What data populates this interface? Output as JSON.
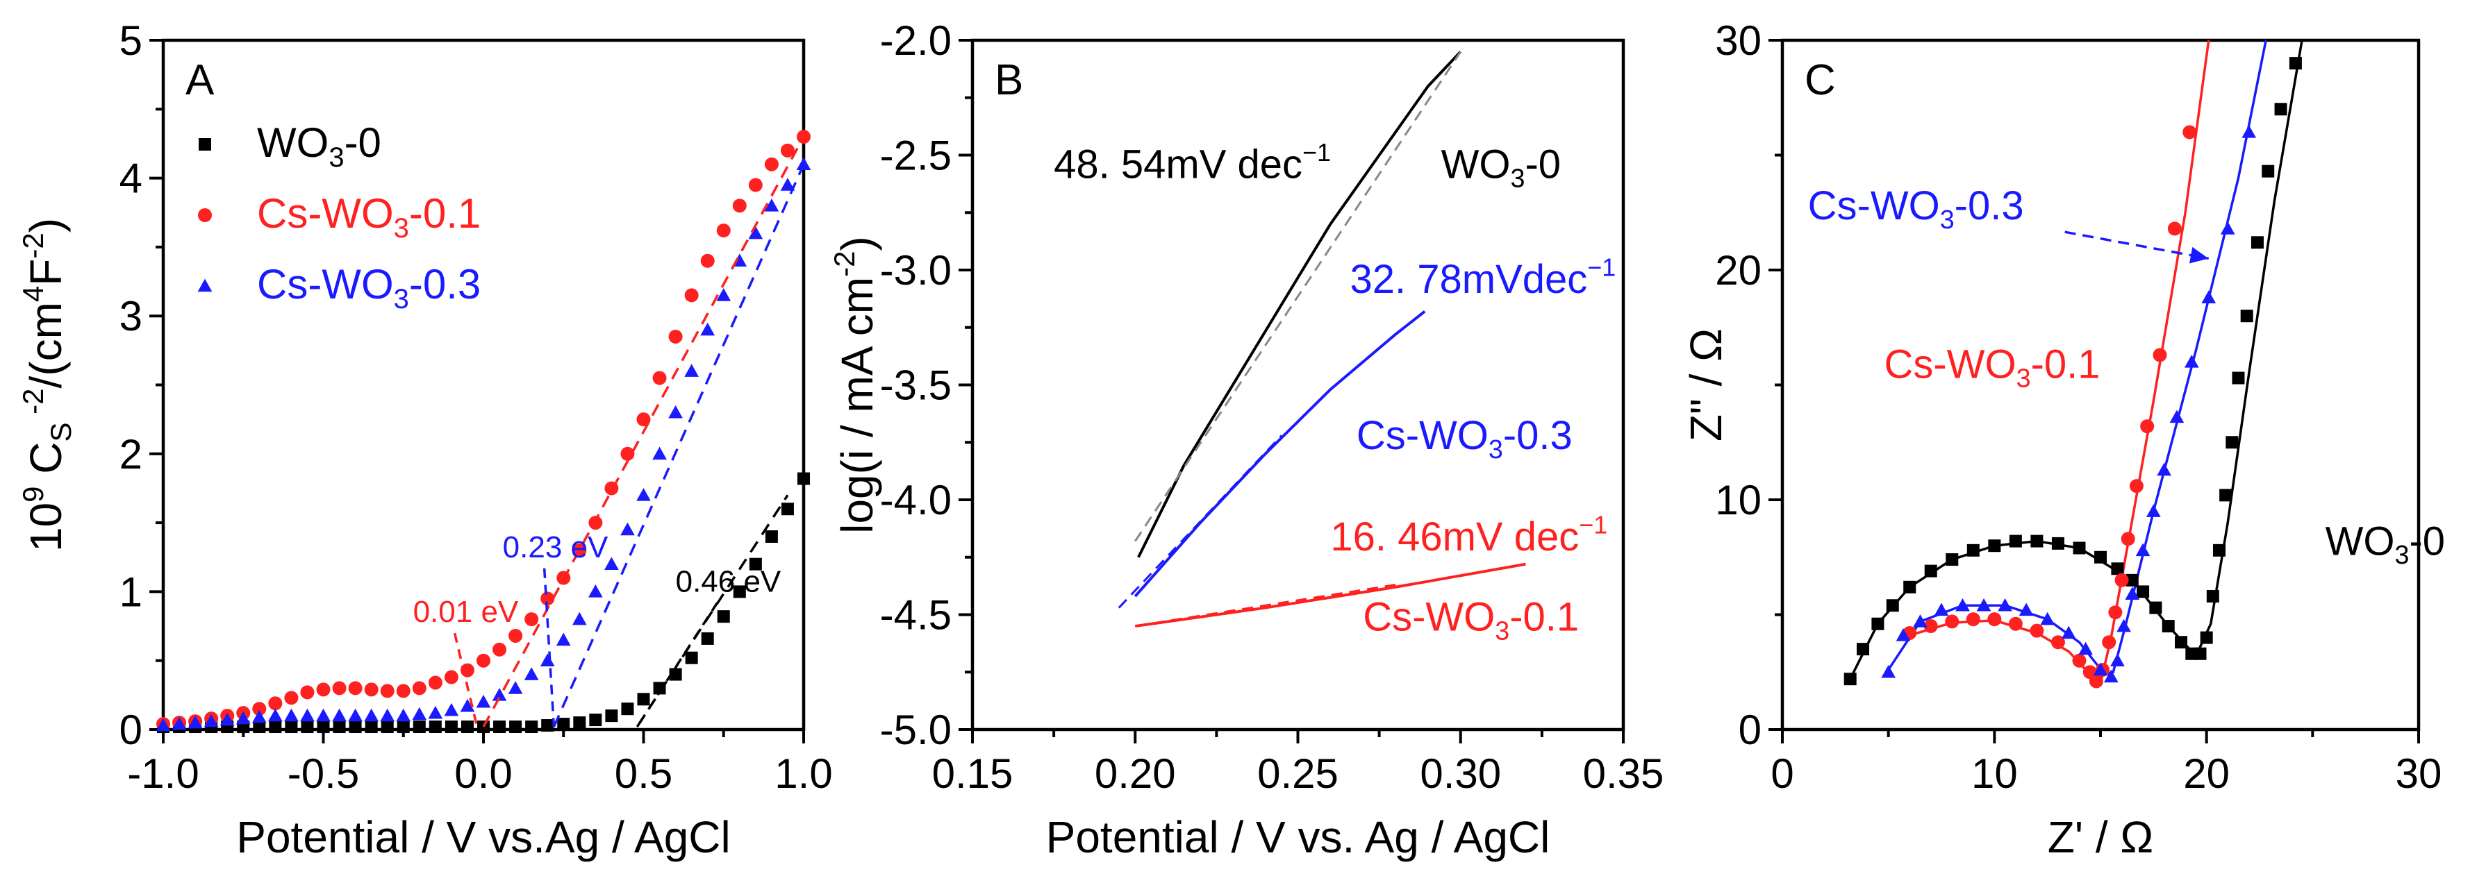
{
  "colors": {
    "black": "#000000",
    "red": "#ff2020",
    "blue": "#1a1aff"
  },
  "chart_data": [
    {
      "type": "scatter",
      "panel": "A",
      "title": "",
      "xlabel": "Potential / V vs.Ag / AgCl",
      "ylabel": "10^9 C_S^-2/(cm^4F^-2)",
      "ylabel_parts": {
        "prefix": "10",
        "exp1": "9",
        "mid": " C",
        "sub": "S",
        "exp2": " -2",
        "rest": "/(cm",
        "exp3": "4",
        "unit": "F",
        "exp4": "-2",
        "close": ")"
      },
      "xlim": [
        -1.0,
        1.0
      ],
      "ylim": [
        0,
        5
      ],
      "xticks": [
        -1.0,
        -0.5,
        0.0,
        0.5,
        1.0
      ],
      "xtick_labels": [
        "-1.0",
        "-0.5",
        "0.0",
        "0.5",
        "1.0"
      ],
      "yticks": [
        0,
        1,
        2,
        3,
        4,
        5
      ],
      "ytick_labels": [
        "0",
        "1",
        "2",
        "3",
        "4",
        "5"
      ],
      "legend_position": "top-left",
      "series": [
        {
          "name": "WO3-0",
          "label_main": "WO",
          "label_sub": "3",
          "label_rest": "-0",
          "color": "#000000",
          "marker": "square",
          "x": [
            -1.0,
            -0.95,
            -0.9,
            -0.85,
            -0.8,
            -0.75,
            -0.7,
            -0.65,
            -0.6,
            -0.55,
            -0.5,
            -0.45,
            -0.4,
            -0.35,
            -0.3,
            -0.25,
            -0.2,
            -0.15,
            -0.1,
            -0.05,
            0.0,
            0.05,
            0.1,
            0.15,
            0.2,
            0.25,
            0.3,
            0.35,
            0.4,
            0.45,
            0.5,
            0.55,
            0.6,
            0.65,
            0.7,
            0.75,
            0.8,
            0.85,
            0.9,
            0.95,
            1.0
          ],
          "y": [
            0.02,
            0.02,
            0.02,
            0.02,
            0.02,
            0.02,
            0.02,
            0.02,
            0.02,
            0.02,
            0.02,
            0.02,
            0.02,
            0.02,
            0.02,
            0.02,
            0.02,
            0.02,
            0.02,
            0.02,
            0.02,
            0.02,
            0.02,
            0.02,
            0.03,
            0.04,
            0.05,
            0.07,
            0.1,
            0.15,
            0.22,
            0.3,
            0.4,
            0.52,
            0.66,
            0.82,
            1.0,
            1.2,
            1.4,
            1.6,
            1.82
          ]
        },
        {
          "name": "Cs-WO3-0.1",
          "label_main": "Cs-WO",
          "label_sub": "3",
          "label_rest": "-0.1",
          "color": "#ff2020",
          "marker": "circle",
          "x": [
            -1.0,
            -0.95,
            -0.9,
            -0.85,
            -0.8,
            -0.75,
            -0.7,
            -0.65,
            -0.6,
            -0.55,
            -0.5,
            -0.45,
            -0.4,
            -0.35,
            -0.3,
            -0.25,
            -0.2,
            -0.15,
            -0.1,
            -0.05,
            0.0,
            0.05,
            0.1,
            0.15,
            0.2,
            0.25,
            0.3,
            0.35,
            0.4,
            0.45,
            0.5,
            0.55,
            0.6,
            0.65,
            0.7,
            0.75,
            0.8,
            0.85,
            0.9,
            0.95,
            1.0
          ],
          "y": [
            0.04,
            0.05,
            0.06,
            0.08,
            0.1,
            0.12,
            0.15,
            0.19,
            0.23,
            0.27,
            0.29,
            0.3,
            0.3,
            0.29,
            0.28,
            0.28,
            0.3,
            0.34,
            0.38,
            0.43,
            0.5,
            0.58,
            0.68,
            0.8,
            0.95,
            1.1,
            1.3,
            1.5,
            1.75,
            2.0,
            2.25,
            2.55,
            2.85,
            3.15,
            3.4,
            3.62,
            3.8,
            3.95,
            4.1,
            4.2,
            4.3
          ]
        },
        {
          "name": "Cs-WO3-0.3",
          "label_main": "Cs-WO",
          "label_sub": "3",
          "label_rest": "-0.3",
          "color": "#1a1aff",
          "marker": "triangle",
          "x": [
            -1.0,
            -0.95,
            -0.9,
            -0.85,
            -0.8,
            -0.75,
            -0.7,
            -0.65,
            -0.6,
            -0.55,
            -0.5,
            -0.45,
            -0.4,
            -0.35,
            -0.3,
            -0.25,
            -0.2,
            -0.15,
            -0.1,
            -0.05,
            0.0,
            0.05,
            0.1,
            0.15,
            0.2,
            0.25,
            0.3,
            0.35,
            0.4,
            0.45,
            0.5,
            0.55,
            0.6,
            0.65,
            0.7,
            0.75,
            0.8,
            0.85,
            0.9,
            0.95,
            1.0
          ],
          "y": [
            0.03,
            0.04,
            0.05,
            0.06,
            0.07,
            0.08,
            0.09,
            0.1,
            0.1,
            0.1,
            0.1,
            0.1,
            0.1,
            0.1,
            0.1,
            0.1,
            0.11,
            0.12,
            0.14,
            0.17,
            0.2,
            0.25,
            0.3,
            0.4,
            0.5,
            0.65,
            0.8,
            1.0,
            1.2,
            1.45,
            1.7,
            2.0,
            2.3,
            2.6,
            2.9,
            3.15,
            3.4,
            3.6,
            3.8,
            3.95,
            4.1
          ]
        }
      ],
      "fits": [
        {
          "series": "Cs-WO3-0.1",
          "color": "#ff2020",
          "x": [
            0.0,
            1.0
          ],
          "y": [
            0.02,
            4.3
          ]
        },
        {
          "series": "Cs-WO3-0.3",
          "color": "#1a1aff",
          "x": [
            0.22,
            1.0
          ],
          "y": [
            0.02,
            4.1
          ]
        },
        {
          "series": "WO3-0",
          "color": "#000000",
          "x": [
            0.48,
            0.95
          ],
          "y": [
            0.02,
            1.7
          ]
        }
      ],
      "annotations": [
        {
          "text": "0.01 eV",
          "color": "#ff2020",
          "x": -0.22,
          "y": 0.78,
          "arrow_to": [
            -0.02,
            0.02
          ]
        },
        {
          "text": "0.23 eV",
          "color": "#1a1aff",
          "x": 0.06,
          "y": 1.25,
          "arrow_to": [
            0.22,
            0.02
          ]
        },
        {
          "text": "0.46 eV",
          "color": "#000000",
          "x": 0.6,
          "y": 1.0,
          "arrow_to": [
            0.48,
            0.02
          ]
        }
      ]
    },
    {
      "type": "line",
      "panel": "B",
      "title": "",
      "xlabel": "Potential / V vs. Ag / AgCl",
      "ylabel": "log(i / mA cm^-2)",
      "ylabel_parts": {
        "prefix": "log(i / mA cm",
        "exp": "-2",
        "close": ")"
      },
      "xlim": [
        0.15,
        0.35
      ],
      "ylim": [
        -5.0,
        -2.0
      ],
      "xticks": [
        0.15,
        0.2,
        0.25,
        0.3,
        0.35
      ],
      "xtick_labels": [
        "0.15",
        "0.20",
        "0.25",
        "0.30",
        "0.35"
      ],
      "yticks": [
        -5.0,
        -4.5,
        -4.0,
        -3.5,
        -3.0,
        -2.5,
        -2.0
      ],
      "ytick_labels": [
        "-5.0",
        "-4.5",
        "-4.0",
        "-3.5",
        "-3.0",
        "-2.5",
        "-2.0"
      ],
      "series": [
        {
          "name": "WO3-0",
          "color": "#000000",
          "x": [
            0.201,
            0.215,
            0.23,
            0.245,
            0.26,
            0.275,
            0.29,
            0.3
          ],
          "y": [
            -4.25,
            -3.85,
            -3.5,
            -3.15,
            -2.8,
            -2.5,
            -2.2,
            -2.05
          ]
        },
        {
          "name": "Cs-WO3-0.3",
          "color": "#1a1aff",
          "x": [
            0.2,
            0.22,
            0.24,
            0.26,
            0.28,
            0.289
          ],
          "y": [
            -4.42,
            -4.1,
            -3.8,
            -3.52,
            -3.28,
            -3.18
          ]
        },
        {
          "name": "Cs-WO3-0.1",
          "color": "#ff2020",
          "x": [
            0.2,
            0.24,
            0.28,
            0.32
          ],
          "y": [
            -4.55,
            -4.47,
            -4.38,
            -4.28
          ]
        }
      ],
      "fits": [
        {
          "series": "WO3-0",
          "color": "#888888",
          "x": [
            0.2,
            0.3
          ],
          "y": [
            -4.18,
            -2.05
          ]
        },
        {
          "series": "Cs-WO3-0.3",
          "color": "#1a1aff",
          "x": [
            0.195,
            0.245
          ],
          "y": [
            -4.47,
            -3.72
          ]
        },
        {
          "series": "Cs-WO3-0.1",
          "color": "#ff2020",
          "x": [
            0.2,
            0.28
          ],
          "y": [
            -4.55,
            -4.37
          ]
        }
      ],
      "annotations": [
        {
          "name": "tafel-wo3-0",
          "color": "#000000",
          "text_main": "48. 54mV dec",
          "text_sup": "−1",
          "x": 0.175,
          "y": -2.6
        },
        {
          "name": "series-label-wo3-0",
          "color": "#000000",
          "text_main": "WO",
          "text_sub": "3",
          "text_rest": "-0",
          "x": 0.294,
          "y": -2.6
        },
        {
          "name": "tafel-cs-wo3-0.3",
          "color": "#1a1aff",
          "text_main": "32. 78mVdec",
          "text_sup": "−1",
          "x": 0.266,
          "y": -3.1
        },
        {
          "name": "series-label-cs-wo3-0.3",
          "color": "#1a1aff",
          "text_main": "Cs-WO",
          "text_sub": "3",
          "text_rest": "-0.3",
          "x": 0.268,
          "y": -3.78
        },
        {
          "name": "tafel-cs-wo3-0.1",
          "color": "#ff2020",
          "text_main": "16. 46mV dec",
          "text_sup": "−1",
          "x": 0.26,
          "y": -4.22
        },
        {
          "name": "series-label-cs-wo3-0.1",
          "color": "#ff2020",
          "text_main": "Cs-WO",
          "text_sub": "3",
          "text_rest": "-0.1",
          "x": 0.27,
          "y": -4.57
        }
      ]
    },
    {
      "type": "scatter",
      "panel": "C",
      "title": "",
      "xlabel": "Z' / Ω",
      "ylabel": "Z\" / Ω",
      "xlim": [
        0,
        30
      ],
      "ylim": [
        0,
        30
      ],
      "xticks": [
        0,
        10,
        20,
        30
      ],
      "xtick_labels": [
        "0",
        "10",
        "20",
        "30"
      ],
      "yticks": [
        0,
        10,
        20,
        30
      ],
      "ytick_labels": [
        "0",
        "10",
        "20",
        "30"
      ],
      "series": [
        {
          "name": "WO3-0",
          "color": "#000000",
          "marker": "square",
          "x": [
            3.2,
            3.8,
            4.5,
            5.2,
            6.0,
            7.0,
            8.0,
            9.0,
            10.0,
            11.0,
            12.0,
            13.0,
            14.0,
            15.0,
            15.8,
            16.5,
            17.0,
            17.6,
            18.2,
            18.8,
            19.3,
            19.7,
            20.0,
            20.3,
            20.6,
            20.9,
            21.2,
            21.5,
            21.9,
            22.4,
            22.9,
            23.5,
            24.2
          ],
          "y": [
            2.2,
            3.5,
            4.6,
            5.4,
            6.2,
            6.9,
            7.4,
            7.8,
            8.0,
            8.2,
            8.2,
            8.1,
            7.9,
            7.5,
            7.0,
            6.5,
            6.0,
            5.3,
            4.5,
            3.8,
            3.3,
            3.3,
            4.0,
            5.8,
            7.8,
            10.2,
            12.5,
            15.3,
            18.0,
            21.2,
            24.3,
            27.0,
            29.0
          ]
        },
        {
          "name": "Cs-WO3-0.1",
          "color": "#ff2020",
          "marker": "circle",
          "x": [
            6.0,
            7.0,
            8.0,
            9.0,
            10.0,
            11.0,
            12.0,
            13.0,
            14.0,
            14.5,
            14.8,
            15.1,
            15.4,
            15.7,
            16.0,
            16.3,
            16.7,
            17.2,
            17.8,
            18.5,
            19.2
          ],
          "y": [
            4.2,
            4.5,
            4.7,
            4.8,
            4.8,
            4.6,
            4.3,
            3.8,
            3.0,
            2.5,
            2.1,
            2.6,
            3.8,
            5.1,
            6.5,
            8.3,
            10.6,
            13.2,
            16.3,
            21.8,
            26.0
          ]
        },
        {
          "name": "Cs-WO3-0.3",
          "color": "#1a1aff",
          "marker": "triangle",
          "x": [
            5.0,
            5.7,
            6.5,
            7.5,
            8.5,
            9.5,
            10.5,
            11.5,
            12.5,
            13.5,
            14.3,
            15.0,
            15.5,
            15.8,
            16.1,
            16.5,
            17.0,
            17.5,
            18.0,
            18.6,
            19.3,
            20.1,
            21.0,
            22.0
          ],
          "y": [
            2.5,
            4.1,
            4.7,
            5.2,
            5.4,
            5.4,
            5.4,
            5.2,
            4.8,
            4.2,
            3.5,
            2.6,
            2.3,
            3.0,
            4.5,
            5.9,
            7.8,
            9.5,
            11.3,
            13.6,
            16.0,
            18.8,
            21.8,
            26.0
          ]
        }
      ],
      "fits": [
        {
          "series": "Cs-WO3-0.1",
          "color": "#ff2020",
          "x": [
            6.0,
            8.0,
            10.0,
            12.0,
            13.5,
            14.6,
            15.0,
            15.5,
            16.2,
            17.5,
            19.0,
            20.1
          ],
          "y": [
            4.1,
            4.65,
            4.75,
            4.2,
            3.4,
            2.3,
            2.0,
            4.0,
            7.6,
            14.3,
            22.5,
            30.0
          ]
        },
        {
          "series": "Cs-WO3-0.3",
          "color": "#1a1aff",
          "x": [
            5.0,
            6.5,
            8.5,
            10.5,
            12.5,
            14.0,
            15.2,
            15.6,
            16.2,
            17.5,
            19.5,
            21.5,
            22.8
          ],
          "y": [
            2.6,
            4.7,
            5.4,
            5.4,
            4.8,
            3.8,
            2.4,
            2.5,
            4.6,
            9.5,
            16.5,
            24.0,
            30.0
          ]
        },
        {
          "series": "WO3-0",
          "color": "#000000",
          "x": [
            3.2,
            4.5,
            6.0,
            8.0,
            10.0,
            12.0,
            14.0,
            16.5,
            18.2,
            19.5,
            20.2,
            21.0,
            22.0,
            23.2,
            24.5
          ],
          "y": [
            2.2,
            4.6,
            6.2,
            7.4,
            8.0,
            8.2,
            7.9,
            6.5,
            4.5,
            3.2,
            4.6,
            9.0,
            15.5,
            23.0,
            30.0
          ]
        }
      ],
      "annotations": [
        {
          "name": "label-cs-wo3-0.3",
          "color": "#1a1aff",
          "text_main": "Cs-WO",
          "text_sub": "3",
          "text_rest": "-0.3",
          "x": 1.2,
          "y": 22.2,
          "arrow_to": [
            20.1,
            20.5
          ]
        },
        {
          "name": "label-cs-wo3-0.1",
          "color": "#ff2020",
          "text_main": "Cs-WO",
          "text_sub": "3",
          "text_rest": "-0.1",
          "x": 4.8,
          "y": 15.3
        },
        {
          "name": "label-wo3-0",
          "color": "#000000",
          "text_main": "WO",
          "text_sub": "3",
          "text_rest": "-0",
          "x": 25.6,
          "y": 7.6
        }
      ]
    }
  ]
}
